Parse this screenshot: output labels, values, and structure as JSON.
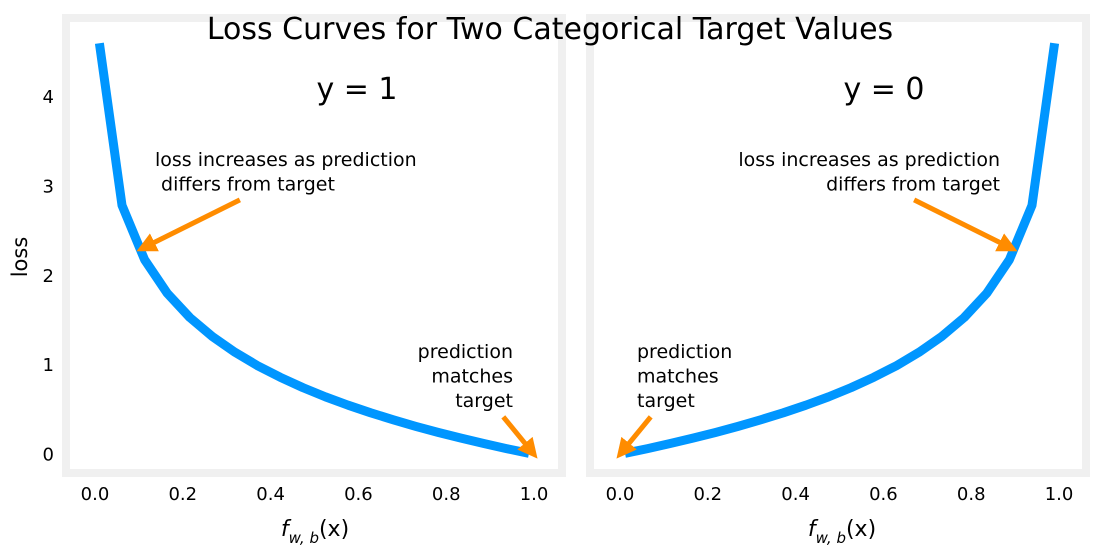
{
  "chart_data": {
    "title": "Loss Curves for Two Categorical Target Values",
    "ylabel": "loss",
    "xlabel_main": "f",
    "xlabel_sub": "w, b",
    "xlabel_arg": "(x)",
    "line_color": "#0096ff",
    "arrow_color": "#ff8c00",
    "frame_color": "#f0f0f0",
    "panels": [
      {
        "type": "line",
        "label": "y = 1",
        "xlim": [
          -0.025,
          1.025
        ],
        "ylim": [
          -0.22,
          4.82
        ],
        "x_ticks": [
          "0.0",
          "0.2",
          "0.4",
          "0.6",
          "0.8",
          "1.0"
        ],
        "y_ticks": [
          "0",
          "1",
          "2",
          "3",
          "4"
        ],
        "x": [
          0.01,
          0.0615,
          0.113,
          0.1645,
          0.216,
          0.2675,
          0.319,
          0.3705,
          0.422,
          0.4735,
          0.525,
          0.5765,
          0.628,
          0.6795,
          0.731,
          0.7825,
          0.834,
          0.8855,
          0.937,
          0.9885
        ],
        "y": [
          4.605,
          2.789,
          2.18,
          1.805,
          1.533,
          1.319,
          1.143,
          0.993,
          0.863,
          0.748,
          0.644,
          0.551,
          0.465,
          0.387,
          0.313,
          0.245,
          0.182,
          0.122,
          0.065,
          0.012
        ],
        "annotations": [
          {
            "text_lines": [
              "loss increases as prediction",
              " differs from target"
            ],
            "align": "left",
            "arrow_from": [
              0.33,
              2.85
            ],
            "arrow_to": [
              0.113,
              2.32
            ]
          },
          {
            "text_lines": [
              "prediction",
              "matches",
              "target"
            ],
            "align": "right",
            "arrow_from": [
              0.93,
              0.42
            ],
            "arrow_to": [
              0.995,
              0.03
            ]
          }
        ]
      },
      {
        "type": "line",
        "label": "y = 0",
        "xlim": [
          -0.025,
          1.025
        ],
        "ylim": [
          -0.22,
          4.82
        ],
        "x_ticks": [
          "0.0",
          "0.2",
          "0.4",
          "0.6",
          "0.8",
          "1.0"
        ],
        "y_ticks": [],
        "x": [
          0.0115,
          0.063,
          0.1145,
          0.166,
          0.2175,
          0.269,
          0.3205,
          0.372,
          0.4235,
          0.475,
          0.5265,
          0.578,
          0.6295,
          0.681,
          0.7325,
          0.784,
          0.8355,
          0.887,
          0.9385,
          0.99
        ],
        "y": [
          0.012,
          0.065,
          0.122,
          0.182,
          0.245,
          0.313,
          0.387,
          0.465,
          0.551,
          0.644,
          0.748,
          0.863,
          0.993,
          1.143,
          1.319,
          1.533,
          1.805,
          2.18,
          2.789,
          4.605
        ],
        "annotations": [
          {
            "text_lines": [
              "loss increases as prediction",
              "differs from target"
            ],
            "align": "right",
            "arrow_from": [
              0.67,
              2.85
            ],
            "arrow_to": [
              0.887,
              2.32
            ]
          },
          {
            "text_lines": [
              "prediction",
              "matches",
              "target"
            ],
            "align": "left",
            "arrow_from": [
              0.07,
              0.42
            ],
            "arrow_to": [
              0.005,
              0.03
            ]
          }
        ]
      }
    ]
  }
}
